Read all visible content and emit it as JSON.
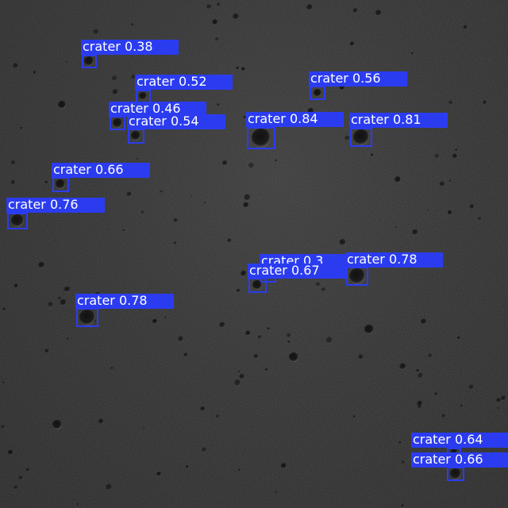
{
  "image": {
    "description_free": true,
    "colors": {
      "box": "#2b3cf0",
      "label_text": "#ffffff"
    }
  },
  "detections": [
    {
      "label": "crater",
      "score": "0.38"
    },
    {
      "label": "crater",
      "score": "0.52"
    },
    {
      "label": "crater",
      "score": "0.46"
    },
    {
      "label": "crater",
      "score": "0.54"
    },
    {
      "label": "crater",
      "score": "0.84"
    },
    {
      "label": "crater",
      "score": "0.56"
    },
    {
      "label": "crater",
      "score": "0.81"
    },
    {
      "label": "crater",
      "score": "0.66"
    },
    {
      "label": "crater",
      "score": "0.76"
    },
    {
      "label": "crater",
      "score": "0.3"
    },
    {
      "label": "crater",
      "score": "0.78"
    },
    {
      "label": "crater",
      "score": "0.67"
    },
    {
      "label": "crater",
      "score": "0.78"
    },
    {
      "label": "crater",
      "score": "0.64"
    },
    {
      "label": "crater",
      "score": "0.66"
    }
  ]
}
